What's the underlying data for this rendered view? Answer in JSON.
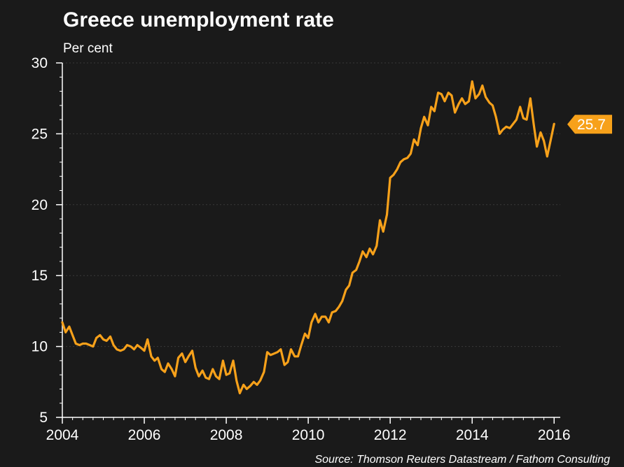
{
  "chart_data": {
    "type": "line",
    "title": "Greece unemployment rate",
    "subtitle": "Per cent",
    "xlabel": "",
    "ylabel": "",
    "source": "Source: Thomson Reuters Datastream / Fathom Consulting",
    "xlim": [
      2004,
      2016.15
    ],
    "ylim": [
      5,
      30
    ],
    "y_ticks": [
      5,
      10,
      15,
      20,
      25,
      30
    ],
    "x_ticks": [
      2004,
      2006,
      2008,
      2010,
      2012,
      2014,
      2016
    ],
    "y_tick_labels": [
      "5",
      "10",
      "15",
      "20",
      "25",
      "30"
    ],
    "x_tick_labels": [
      "2004",
      "2006",
      "2008",
      "2010",
      "2012",
      "2014",
      "2016"
    ],
    "grid": true,
    "line_color": "#f7a11a",
    "last_value_label": "25.7",
    "series": [
      {
        "name": "",
        "x": [
          2004.0,
          2004.08,
          2004.17,
          2004.25,
          2004.33,
          2004.42,
          2004.5,
          2004.58,
          2004.67,
          2004.75,
          2004.83,
          2004.92,
          2005.0,
          2005.08,
          2005.17,
          2005.25,
          2005.33,
          2005.42,
          2005.5,
          2005.58,
          2005.67,
          2005.75,
          2005.83,
          2005.92,
          2006.0,
          2006.08,
          2006.17,
          2006.25,
          2006.33,
          2006.42,
          2006.5,
          2006.58,
          2006.67,
          2006.75,
          2006.83,
          2006.92,
          2007.0,
          2007.08,
          2007.17,
          2007.25,
          2007.33,
          2007.42,
          2007.5,
          2007.58,
          2007.67,
          2007.75,
          2007.83,
          2007.92,
          2008.0,
          2008.08,
          2008.17,
          2008.25,
          2008.33,
          2008.42,
          2008.5,
          2008.58,
          2008.67,
          2008.75,
          2008.83,
          2008.92,
          2009.0,
          2009.08,
          2009.17,
          2009.25,
          2009.33,
          2009.42,
          2009.5,
          2009.58,
          2009.67,
          2009.75,
          2009.83,
          2009.92,
          2010.0,
          2010.08,
          2010.17,
          2010.25,
          2010.33,
          2010.42,
          2010.5,
          2010.58,
          2010.67,
          2010.75,
          2010.83,
          2010.92,
          2011.0,
          2011.08,
          2011.17,
          2011.25,
          2011.33,
          2011.42,
          2011.5,
          2011.58,
          2011.67,
          2011.75,
          2011.83,
          2011.92,
          2012.0,
          2012.08,
          2012.17,
          2012.25,
          2012.33,
          2012.42,
          2012.5,
          2012.58,
          2012.67,
          2012.75,
          2012.83,
          2012.92,
          2013.0,
          2013.08,
          2013.17,
          2013.25,
          2013.33,
          2013.42,
          2013.5,
          2013.58,
          2013.67,
          2013.75,
          2013.83,
          2013.92,
          2014.0,
          2014.08,
          2014.17,
          2014.25,
          2014.33,
          2014.42,
          2014.5,
          2014.58,
          2014.67,
          2014.75,
          2014.83,
          2014.92,
          2015.0,
          2015.08,
          2015.17,
          2015.25,
          2015.33,
          2015.42,
          2015.5,
          2015.58,
          2015.67,
          2015.75,
          2015.83,
          2015.92,
          2016.0
        ],
        "values": [
          11.7,
          11.0,
          11.4,
          10.8,
          10.2,
          10.1,
          10.2,
          10.2,
          10.1,
          10.0,
          10.6,
          10.8,
          10.5,
          10.4,
          10.7,
          10.1,
          9.8,
          9.7,
          9.8,
          10.1,
          10.0,
          9.8,
          10.1,
          9.9,
          9.7,
          10.5,
          9.3,
          9.0,
          9.2,
          8.4,
          8.2,
          8.8,
          8.4,
          7.9,
          9.2,
          9.5,
          8.9,
          9.3,
          9.7,
          8.5,
          7.9,
          8.3,
          7.8,
          7.7,
          8.4,
          7.9,
          7.7,
          9.0,
          8.0,
          8.1,
          9.0,
          7.6,
          6.7,
          7.3,
          7.0,
          7.2,
          7.5,
          7.3,
          7.6,
          8.2,
          9.6,
          9.4,
          9.5,
          9.6,
          9.8,
          8.7,
          8.9,
          9.8,
          9.3,
          9.3,
          10.1,
          10.9,
          10.6,
          11.7,
          12.3,
          11.7,
          12.1,
          12.1,
          11.7,
          12.4,
          12.5,
          12.8,
          13.2,
          14.0,
          14.3,
          15.2,
          15.4,
          16.0,
          16.7,
          16.3,
          16.9,
          16.5,
          17.1,
          18.9,
          18.1,
          19.3,
          21.9,
          22.1,
          22.5,
          23.0,
          23.2,
          23.3,
          23.6,
          24.6,
          24.2,
          25.4,
          26.2,
          25.6,
          26.9,
          26.6,
          27.9,
          27.8,
          27.3,
          27.9,
          27.7,
          26.5,
          27.1,
          27.5,
          27.1,
          27.3,
          28.7,
          27.5,
          27.8,
          28.4,
          27.6,
          27.2,
          27.0,
          26.2,
          25.0,
          25.3,
          25.5,
          25.4,
          25.7,
          26.0,
          26.9,
          26.1,
          26.0,
          27.5,
          25.7,
          24.1,
          25.1,
          24.5,
          23.4,
          24.6,
          25.7
        ]
      }
    ]
  }
}
